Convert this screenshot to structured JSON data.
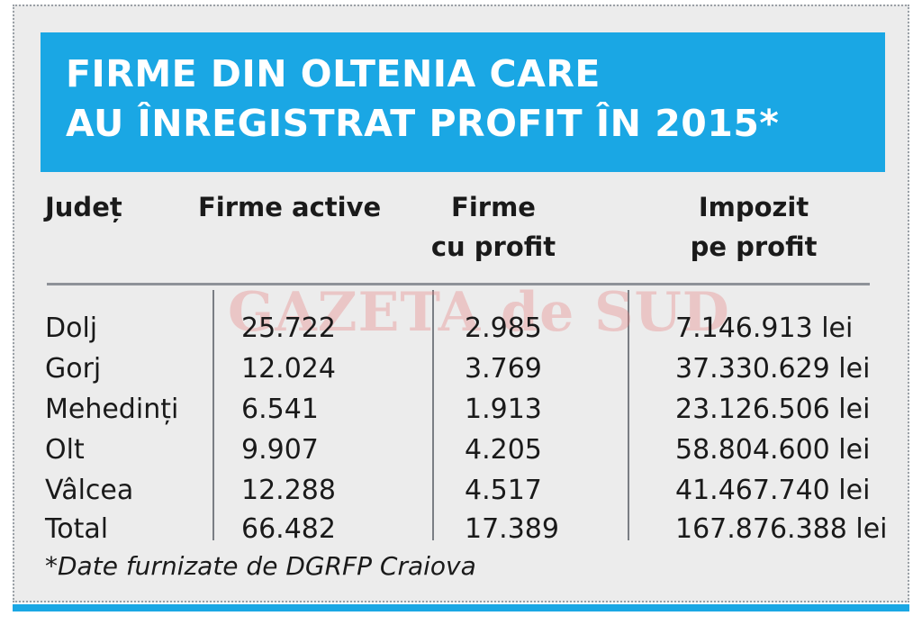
{
  "title": {
    "line1": "FIRME DIN OLTENIA CARE",
    "line2": "AU ÎNREGISTRAT PROFIT ÎN 2015*"
  },
  "watermark": "GAZETA de SUD",
  "table": {
    "headers": [
      {
        "line1": "Județ",
        "line2": ""
      },
      {
        "line1": "Firme active",
        "line2": ""
      },
      {
        "line1": "Firme",
        "line2": "cu profit"
      },
      {
        "line1": "Impozit",
        "line2": "pe profit"
      }
    ],
    "rows": [
      {
        "judet": "Dolj",
        "active": "25.722",
        "profit": "2.985",
        "impozit": "7.146.913 lei"
      },
      {
        "judet": "Gorj",
        "active": "12.024",
        "profit": "3.769",
        "impozit": "37.330.629 lei"
      },
      {
        "judet": "Mehedinți",
        "active": "6.541",
        "profit": "1.913",
        "impozit": "23.126.506 lei"
      },
      {
        "judet": "Olt",
        "active": "9.907",
        "profit": "4.205",
        "impozit": "58.804.600 lei"
      },
      {
        "judet": "Vâlcea",
        "active": "12.288",
        "profit": "4.517",
        "impozit": "41.467.740 lei"
      },
      {
        "judet": "Total",
        "active": "66.482",
        "profit": "17.389",
        "impozit": "167.876.388 lei"
      }
    ]
  },
  "footnote": "*Date furnizate de DGRFP Craiova",
  "colors": {
    "accent": "#1aa7e4",
    "panel": "#ececec",
    "text": "#1a1a1a",
    "watermark": "#e67878"
  }
}
